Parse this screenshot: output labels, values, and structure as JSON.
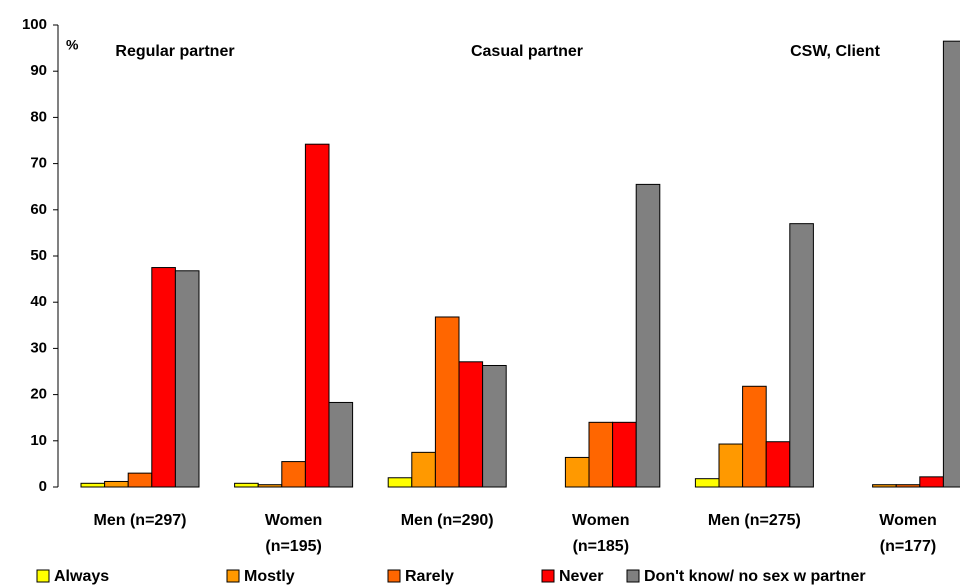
{
  "chart_data": {
    "type": "bar",
    "annotations": [
      "%",
      "Regular partner",
      "Casual partner",
      "CSW, Client"
    ],
    "categories": [
      "Men (n=297)",
      "Women\n(n=195)",
      "Men (n=290)",
      "Women\n(n=185)",
      "Men (n=275)",
      "Women\n(n=177)"
    ],
    "series": [
      {
        "name": "Always",
        "color": "#ffff00",
        "values": [
          0.8,
          0.8,
          2,
          0,
          1.8,
          0
        ]
      },
      {
        "name": "Mostly",
        "color": "#ff9900",
        "values": [
          1.2,
          0.5,
          7.5,
          6.4,
          9.3,
          0.5
        ]
      },
      {
        "name": "Rarely",
        "color": "#ff6600",
        "values": [
          3,
          5.5,
          36.8,
          14,
          21.8,
          0.5
        ]
      },
      {
        "name": "Never",
        "color": "#ff0000",
        "values": [
          47.5,
          74.2,
          27.1,
          14,
          9.8,
          2.2
        ]
      },
      {
        "name": "Don't know/ no sex w partner",
        "color": "#808080",
        "values": [
          46.8,
          18.3,
          26.3,
          65.5,
          57,
          96.5
        ]
      }
    ],
    "ylim": [
      0,
      100
    ],
    "yticks": [
      0,
      10,
      20,
      30,
      40,
      50,
      60,
      70,
      80,
      90,
      100
    ],
    "grid": false
  }
}
